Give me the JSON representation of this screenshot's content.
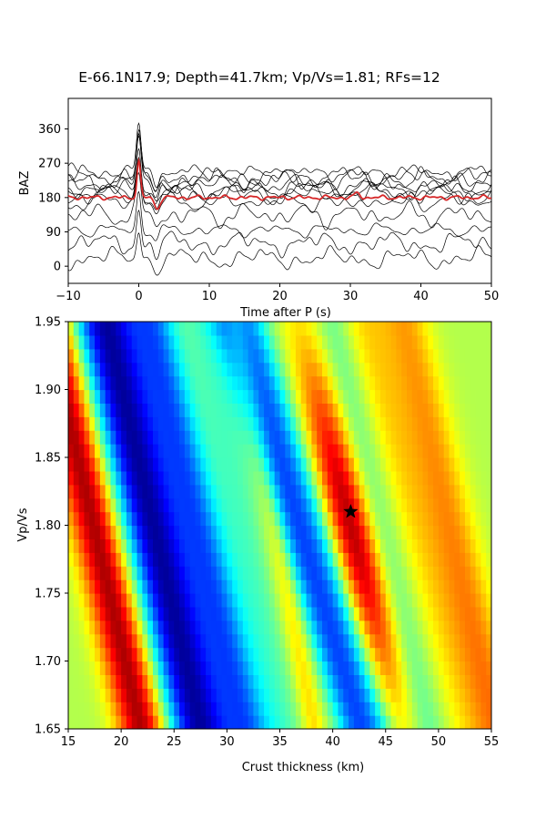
{
  "title": "E-66.1N17.9; Depth=41.7km; Vp/Vs=1.81; RFs=12",
  "chart_data": [
    {
      "type": "line",
      "xlabel": "Time after P (s)",
      "ylabel": "BAZ",
      "xlim": [
        -10,
        50
      ],
      "ylim": [
        -45,
        440
      ],
      "xticks": [
        "−10",
        "0",
        "10",
        "20",
        "30",
        "40",
        "50"
      ],
      "xtick_values": [
        -10,
        0,
        10,
        20,
        30,
        40,
        50
      ],
      "yticks": [
        "0",
        "90",
        "180",
        "270",
        "360"
      ],
      "ytick_values": [
        0,
        90,
        180,
        270,
        360
      ],
      "traces_count": 12,
      "trace_baselines": [
        20,
        60,
        95,
        135,
        170,
        185,
        195,
        205,
        215,
        225,
        235,
        245
      ],
      "trace_color": "#000000",
      "stack": {
        "baseline": 180,
        "peak_time": 0,
        "peak_value": 275,
        "color": "#d62728"
      },
      "grid": false
    },
    {
      "type": "heatmap",
      "xlabel": "Crust thickness (km)",
      "ylabel": "Vp/Vs",
      "xlim": [
        15,
        55
      ],
      "ylim": [
        1.65,
        1.95
      ],
      "xticks": [
        "15",
        "20",
        "25",
        "30",
        "35",
        "40",
        "45",
        "50",
        "55"
      ],
      "xtick_values": [
        15,
        20,
        25,
        30,
        35,
        40,
        45,
        50,
        55
      ],
      "yticks": [
        "1.65",
        "1.70",
        "1.75",
        "1.80",
        "1.85",
        "1.90",
        "1.95"
      ],
      "ytick_values": [
        1.65,
        1.7,
        1.75,
        1.8,
        1.85,
        1.9,
        1.95
      ],
      "colormap": "jet",
      "best_fit": {
        "thickness": 41.7,
        "vpvs": 1.81,
        "marker": "star",
        "color": "#000000"
      },
      "grid": false
    }
  ]
}
